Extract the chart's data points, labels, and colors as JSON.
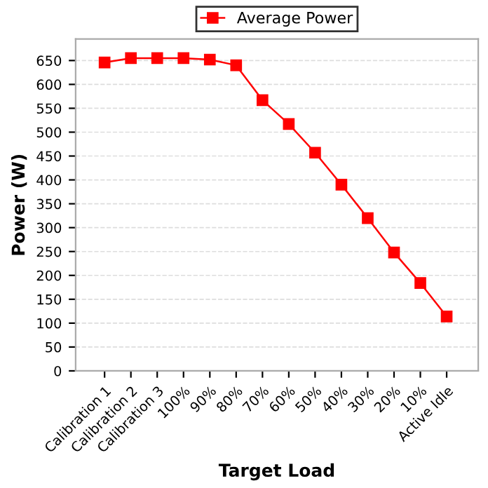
{
  "chart_data": {
    "type": "line",
    "xlabel": "Target Load",
    "ylabel": "Power (W)",
    "categories": [
      "Calibration 1",
      "Calibration 2",
      "Calibration 3",
      "100%",
      "90%",
      "80%",
      "70%",
      "60%",
      "50%",
      "40%",
      "30%",
      "20%",
      "10%",
      "Active Idle"
    ],
    "series": [
      {
        "name": "Average Power",
        "color": "#ff0000",
        "values": [
          646,
          655,
          655,
          655,
          652,
          640,
          567,
          517,
          457,
          390,
          320,
          248,
          184,
          114
        ]
      }
    ],
    "ylim": [
      0,
      695
    ],
    "yticks": [
      0,
      50,
      100,
      150,
      200,
      250,
      300,
      350,
      400,
      450,
      500,
      550,
      600,
      650
    ],
    "grid": "y",
    "legend": "top",
    "marker": "square",
    "line_style": "solid"
  }
}
